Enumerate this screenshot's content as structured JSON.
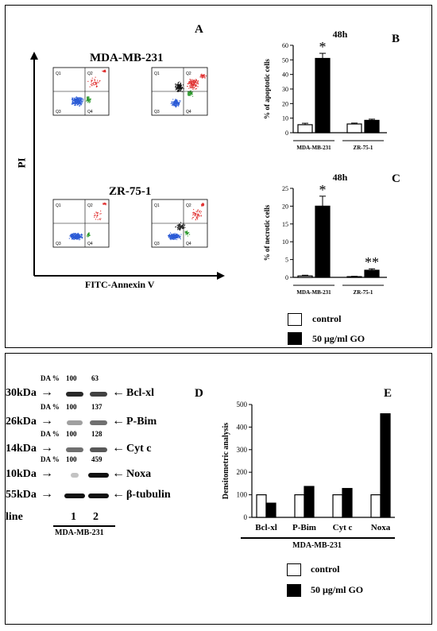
{
  "top": {
    "panel_A_letter": "A",
    "panel_B_letter": "B",
    "panel_C_letter": "C",
    "y_axis_label": "PI",
    "x_axis_label": "FITC-Annexin V",
    "cell_line_1": "MDA-MB-231",
    "cell_line_2": "ZR-75-1",
    "quadrants": [
      "Q1",
      "Q2",
      "Q3",
      "Q4"
    ]
  },
  "legend_top": {
    "control": "control",
    "treated": "50 μg/ml GO"
  },
  "bottom": {
    "panel_D_letter": "D",
    "panel_E_letter": "E",
    "da_label": "DA %",
    "line_label": "line",
    "lane_1": "1",
    "lane_2": "2",
    "cell_line": "MDA-MB-231",
    "blots": [
      {
        "kda": "30kDa",
        "protein": "Bcl-xl",
        "da1": "100",
        "da2": "63"
      },
      {
        "kda": "26kDa",
        "protein": "P-Bim",
        "da1": "100",
        "da2": "137"
      },
      {
        "kda": "14kDa",
        "protein": "Cyt c",
        "da1": "100",
        "da2": "128"
      },
      {
        "kda": "10kDa",
        "protein": "Noxa",
        "da1": "100",
        "da2": "459"
      },
      {
        "kda": "55kDa",
        "protein": "β-tubulin",
        "da1": "",
        "da2": ""
      }
    ]
  },
  "legend_bottom": {
    "control": "control",
    "treated": "50 μg/ml GO"
  },
  "colors": {
    "control": "#ffffff",
    "treated": "#000000",
    "quadrant_blue": "#2b5bd6",
    "quadrant_green": "#2e9a2e",
    "quadrant_red": "#e03030"
  },
  "chart_data": [
    {
      "type": "bar",
      "title": "48h",
      "ylabel": "% of apoptotic cells",
      "ylim": [
        0,
        60
      ],
      "yticks": [
        0,
        10,
        20,
        30,
        40,
        50,
        60
      ],
      "categories": [
        "MDA-MB-231",
        "ZR-75-1"
      ],
      "series": [
        {
          "values": [
            5.5,
            6
          ],
          "errors": [
            1,
            0.6
          ]
        },
        {
          "values": [
            51,
            8.5
          ],
          "errors": [
            3.5,
            0.8
          ]
        }
      ],
      "annotations": [
        {
          "category": "MDA-MB-231",
          "text": "*"
        }
      ]
    },
    {
      "type": "bar",
      "title": "48h",
      "ylabel": "% of necrotic cells",
      "ylim": [
        0,
        25
      ],
      "yticks": [
        0,
        5,
        10,
        15,
        20,
        25
      ],
      "categories": [
        "MDA-MB-231",
        "ZR-75-1"
      ],
      "series": [
        {
          "values": [
            0.4,
            0.2
          ],
          "errors": [
            0.2,
            0.1
          ]
        },
        {
          "values": [
            20,
            2
          ],
          "errors": [
            2.8,
            0.4
          ]
        }
      ],
      "annotations": [
        {
          "category": "MDA-MB-231",
          "text": "*"
        },
        {
          "category": "ZR-75-1",
          "text": "**"
        }
      ]
    },
    {
      "type": "bar",
      "ylabel": "Densitometric analysis",
      "xlabel": "MDA-MB-231",
      "ylim": [
        0,
        500
      ],
      "yticks": [
        0,
        100,
        200,
        300,
        400,
        500
      ],
      "categories": [
        "Bcl-xl",
        "P-Bim",
        "Cyt c",
        "Noxa"
      ],
      "series": [
        {
          "values": [
            100,
            100,
            100,
            100
          ]
        },
        {
          "values": [
            63,
            137,
            128,
            459
          ]
        }
      ]
    }
  ]
}
